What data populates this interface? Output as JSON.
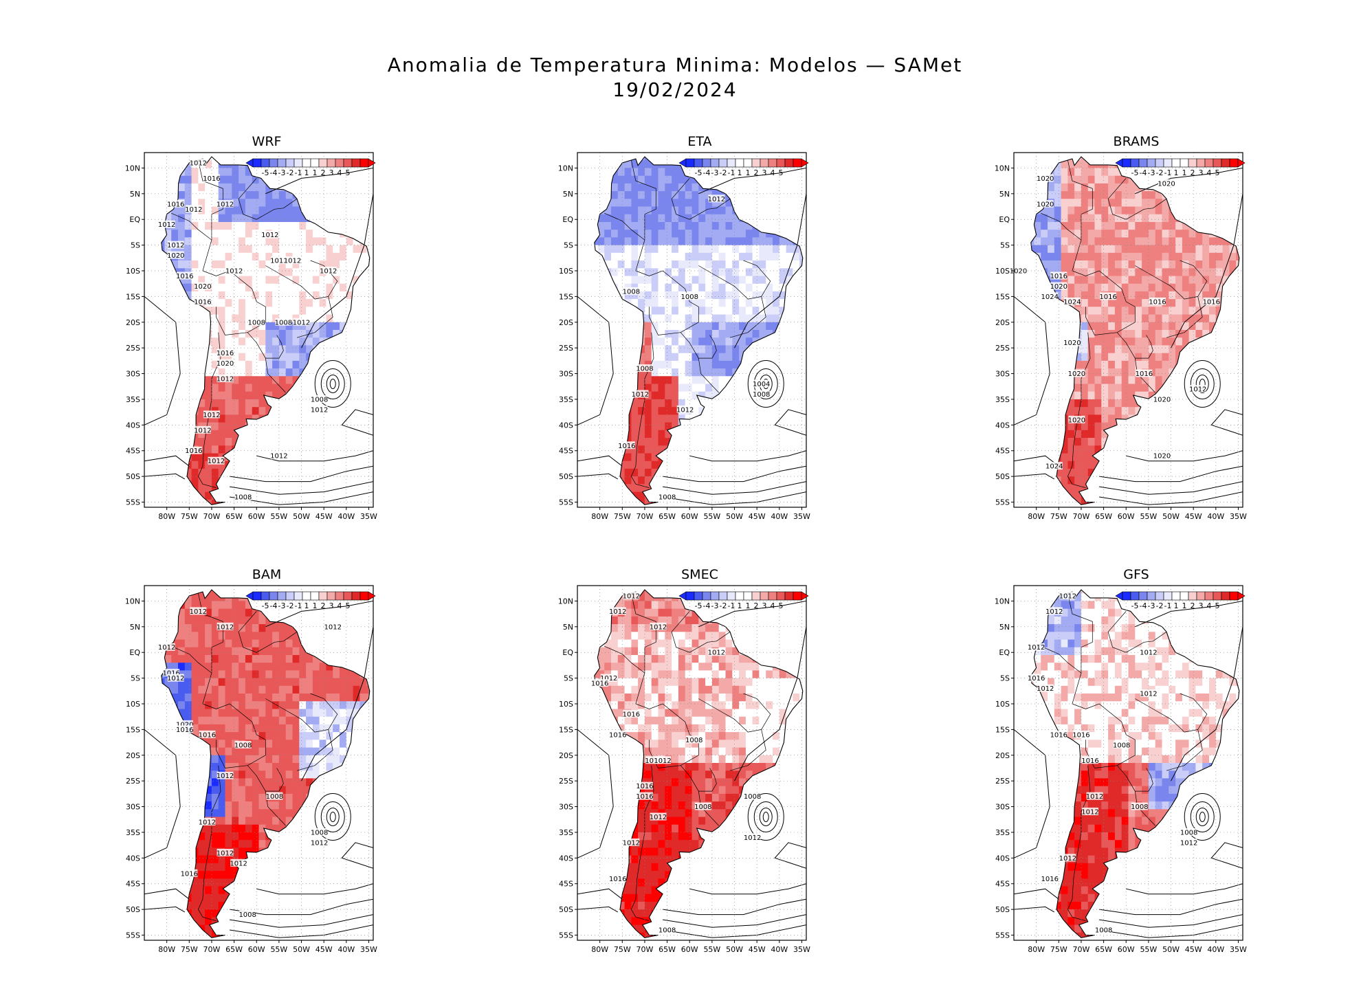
{
  "title": {
    "line1": "Anomalia de Temperatura Minima: Modelos — SAMet",
    "line2": "19/02/2024"
  },
  "colorbar": {
    "labels": [
      "-5",
      "-4",
      "-3",
      "-2",
      "-1",
      "1",
      "1",
      "2",
      "3",
      "4",
      "5"
    ],
    "colors": [
      "#1a2bff",
      "#4a5cf0",
      "#7a86ee",
      "#a3abf2",
      "#c9cdf7",
      "#e8e9fb",
      "#ffffff",
      "#ffffff",
      "#f9d0d0",
      "#f4a9a9",
      "#ef8080",
      "#e95858",
      "#e02a2a",
      "#ff0000"
    ]
  },
  "axes": {
    "lat_labels": [
      "10N",
      "5N",
      "EQ",
      "5S",
      "10S",
      "15S",
      "20S",
      "25S",
      "30S",
      "35S",
      "40S",
      "45S",
      "50S",
      "55S"
    ],
    "lon_labels": [
      "80W",
      "75W",
      "70W",
      "65W",
      "60W",
      "55W",
      "50W",
      "45W",
      "40W",
      "35W"
    ]
  },
  "panels": [
    {
      "name": "WRF",
      "anomaly": "mixed",
      "isobar_labels": [
        {
          "text": "1012",
          "lon": -73,
          "lat": 11
        },
        {
          "text": "1016",
          "lon": -70,
          "lat": 8
        },
        {
          "text": "1012",
          "lon": -67,
          "lat": 3
        },
        {
          "text": "1016",
          "lon": -78,
          "lat": 3
        },
        {
          "text": "1012",
          "lon": -74,
          "lat": 2
        },
        {
          "text": "1012",
          "lon": -80,
          "lat": -1
        },
        {
          "text": "1012",
          "lon": -78,
          "lat": -5
        },
        {
          "text": "1020",
          "lon": -78,
          "lat": -7
        },
        {
          "text": "1012",
          "lon": -57,
          "lat": -3
        },
        {
          "text": "1012",
          "lon": -55,
          "lat": -8
        },
        {
          "text": "1012",
          "lon": -52,
          "lat": -8
        },
        {
          "text": "1012",
          "lon": -65,
          "lat": -10
        },
        {
          "text": "1012",
          "lon": -44,
          "lat": -10
        },
        {
          "text": "1016",
          "lon": -76,
          "lat": -11
        },
        {
          "text": "1020",
          "lon": -72,
          "lat": -13
        },
        {
          "text": "1016",
          "lon": -72,
          "lat": -16
        },
        {
          "text": "1008",
          "lon": -60,
          "lat": -20
        },
        {
          "text": "1008",
          "lon": -54,
          "lat": -20
        },
        {
          "text": "1012",
          "lon": -50,
          "lat": -20
        },
        {
          "text": "1016",
          "lon": -67,
          "lat": -26
        },
        {
          "text": "1020",
          "lon": -67,
          "lat": -28
        },
        {
          "text": "1012",
          "lon": -67,
          "lat": -31
        },
        {
          "text": "1008",
          "lon": -46,
          "lat": -35
        },
        {
          "text": "1012",
          "lon": -46,
          "lat": -37
        },
        {
          "text": "1012",
          "lon": -70,
          "lat": -38
        },
        {
          "text": "1012",
          "lon": -72,
          "lat": -41
        },
        {
          "text": "1016",
          "lon": -74,
          "lat": -45
        },
        {
          "text": "1012",
          "lon": -69,
          "lat": -47
        },
        {
          "text": "1012",
          "lon": -55,
          "lat": -46
        },
        {
          "text": "1008",
          "lon": -63,
          "lat": -54
        }
      ]
    },
    {
      "name": "ETA",
      "anomaly": "cold-north",
      "isobar_labels": [
        {
          "text": "1012",
          "lon": -54,
          "lat": 4
        },
        {
          "text": "1008",
          "lon": -73,
          "lat": -14
        },
        {
          "text": "1008",
          "lon": -60,
          "lat": -15
        },
        {
          "text": "1008",
          "lon": -70,
          "lat": -29
        },
        {
          "text": "1012",
          "lon": -71,
          "lat": -34
        },
        {
          "text": "1012",
          "lon": -61,
          "lat": -37
        },
        {
          "text": "1004",
          "lon": -44,
          "lat": -32
        },
        {
          "text": "1008",
          "lon": -44,
          "lat": -34
        },
        {
          "text": "1016",
          "lon": -74,
          "lat": -44
        },
        {
          "text": "1008",
          "lon": -65,
          "lat": -54
        }
      ]
    },
    {
      "name": "BRAMS",
      "anomaly": "warm",
      "isobar_labels": [
        {
          "text": "1020",
          "lon": -78,
          "lat": 8
        },
        {
          "text": "1020",
          "lon": -78,
          "lat": 3
        },
        {
          "text": "1020",
          "lon": -51,
          "lat": 7
        },
        {
          "text": "1020",
          "lon": -84,
          "lat": -10
        },
        {
          "text": "1016",
          "lon": -75,
          "lat": -11
        },
        {
          "text": "1020",
          "lon": -75,
          "lat": -13
        },
        {
          "text": "1024",
          "lon": -77,
          "lat": -15
        },
        {
          "text": "1024",
          "lon": -72,
          "lat": -16
        },
        {
          "text": "1016",
          "lon": -64,
          "lat": -15
        },
        {
          "text": "1016",
          "lon": -53,
          "lat": -16
        },
        {
          "text": "1016",
          "lon": -41,
          "lat": -16
        },
        {
          "text": "1020",
          "lon": -72,
          "lat": -24
        },
        {
          "text": "1020",
          "lon": -71,
          "lat": -30
        },
        {
          "text": "1016",
          "lon": -56,
          "lat": -30
        },
        {
          "text": "1012",
          "lon": -44,
          "lat": -33
        },
        {
          "text": "1020",
          "lon": -52,
          "lat": -35
        },
        {
          "text": "1020",
          "lon": -71,
          "lat": -39
        },
        {
          "text": "1024",
          "lon": -76,
          "lat": -48
        },
        {
          "text": "1020",
          "lon": -52,
          "lat": -46
        }
      ]
    },
    {
      "name": "BAM",
      "anomaly": "warm-strong",
      "isobar_labels": [
        {
          "text": "1012",
          "lon": -73,
          "lat": 8
        },
        {
          "text": "1012",
          "lon": -67,
          "lat": 5
        },
        {
          "text": "1012",
          "lon": -43,
          "lat": 5
        },
        {
          "text": "1012",
          "lon": -80,
          "lat": 1
        },
        {
          "text": "1016",
          "lon": -79,
          "lat": -4
        },
        {
          "text": "1012",
          "lon": -78,
          "lat": -5
        },
        {
          "text": "1020",
          "lon": -76,
          "lat": -14
        },
        {
          "text": "1016",
          "lon": -76,
          "lat": -15
        },
        {
          "text": "1016",
          "lon": -71,
          "lat": -16
        },
        {
          "text": "1008",
          "lon": -63,
          "lat": -18
        },
        {
          "text": "1012",
          "lon": -67,
          "lat": -24
        },
        {
          "text": "1008",
          "lon": -56,
          "lat": -28
        },
        {
          "text": "1012",
          "lon": -71,
          "lat": -33
        },
        {
          "text": "1008",
          "lon": -46,
          "lat": -35
        },
        {
          "text": "1012",
          "lon": -46,
          "lat": -37
        },
        {
          "text": "1012",
          "lon": -67,
          "lat": -39
        },
        {
          "text": "1012",
          "lon": -64,
          "lat": -41
        },
        {
          "text": "1016",
          "lon": -75,
          "lat": -43
        },
        {
          "text": "1008",
          "lon": -62,
          "lat": -51
        }
      ]
    },
    {
      "name": "SMEC",
      "anomaly": "warm-south",
      "isobar_labels": [
        {
          "text": "1012",
          "lon": -73,
          "lat": 11
        },
        {
          "text": "1012",
          "lon": -76,
          "lat": 8
        },
        {
          "text": "1012",
          "lon": -67,
          "lat": 5
        },
        {
          "text": "1012",
          "lon": -54,
          "lat": 0
        },
        {
          "text": "1012",
          "lon": -78,
          "lat": -5
        },
        {
          "text": "1016",
          "lon": -80,
          "lat": -6
        },
        {
          "text": "1016",
          "lon": -73,
          "lat": -12
        },
        {
          "text": "1016",
          "lon": -76,
          "lat": -16
        },
        {
          "text": "1008",
          "lon": -59,
          "lat": -17
        },
        {
          "text": "1016",
          "lon": -68,
          "lat": -21
        },
        {
          "text": "1012",
          "lon": -66,
          "lat": -21
        },
        {
          "text": "1016",
          "lon": -70,
          "lat": -26
        },
        {
          "text": "1016",
          "lon": -70,
          "lat": -28
        },
        {
          "text": "1008",
          "lon": -57,
          "lat": -30
        },
        {
          "text": "1012",
          "lon": -67,
          "lat": -32
        },
        {
          "text": "1012",
          "lon": -46,
          "lat": -36
        },
        {
          "text": "1008",
          "lon": -46,
          "lat": -28
        },
        {
          "text": "1012",
          "lon": -73,
          "lat": -37
        },
        {
          "text": "1016",
          "lon": -76,
          "lat": -44
        },
        {
          "text": "1008",
          "lon": -65,
          "lat": -54
        }
      ]
    },
    {
      "name": "GFS",
      "anomaly": "warm-mid",
      "isobar_labels": [
        {
          "text": "1012",
          "lon": -73,
          "lat": 11
        },
        {
          "text": "1012",
          "lon": -76,
          "lat": 8
        },
        {
          "text": "1012",
          "lon": -55,
          "lat": 0
        },
        {
          "text": "1012",
          "lon": -80,
          "lat": 1
        },
        {
          "text": "1016",
          "lon": -80,
          "lat": -5
        },
        {
          "text": "1012",
          "lon": -78,
          "lat": -7
        },
        {
          "text": "1012",
          "lon": -55,
          "lat": -8
        },
        {
          "text": "1016",
          "lon": -75,
          "lat": -16
        },
        {
          "text": "1016",
          "lon": -70,
          "lat": -16
        },
        {
          "text": "1008",
          "lon": -61,
          "lat": -18
        },
        {
          "text": "1016",
          "lon": -68,
          "lat": -21
        },
        {
          "text": "1012",
          "lon": -67,
          "lat": -28
        },
        {
          "text": "1008",
          "lon": -57,
          "lat": -30
        },
        {
          "text": "1012",
          "lon": -68,
          "lat": -31
        },
        {
          "text": "1008",
          "lon": -46,
          "lat": -35
        },
        {
          "text": "1012",
          "lon": -46,
          "lat": -37
        },
        {
          "text": "1012",
          "lon": -73,
          "lat": -40
        },
        {
          "text": "1016",
          "lon": -77,
          "lat": -44
        },
        {
          "text": "1008",
          "lon": -65,
          "lat": -54
        }
      ]
    }
  ]
}
